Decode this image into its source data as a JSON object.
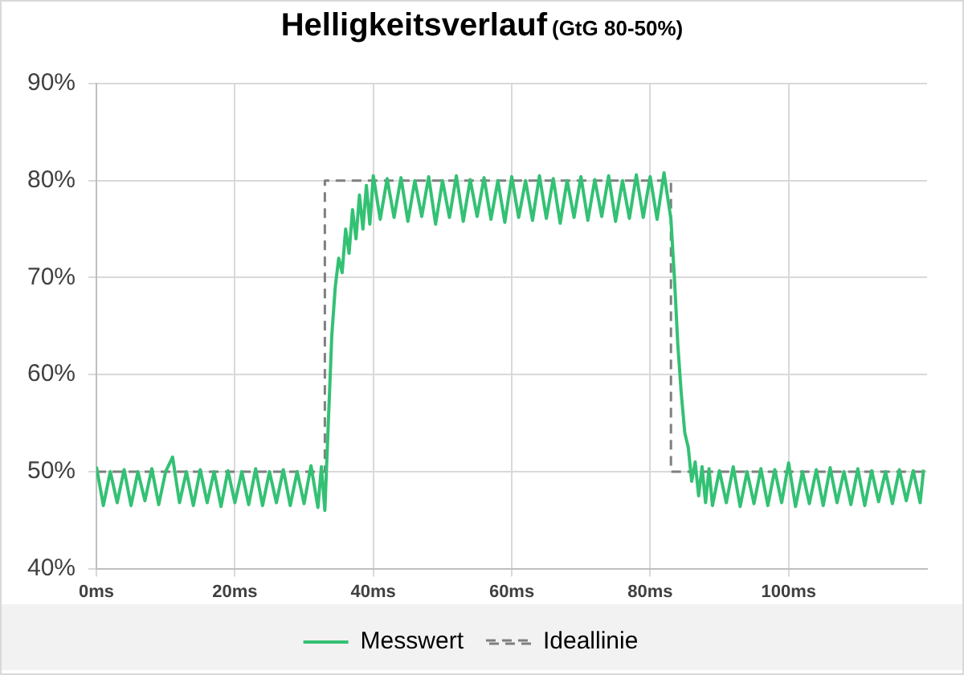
{
  "chart_data": {
    "type": "line",
    "title": "Helligkeitsverlauf",
    "subtitle": "(GtG 80-50%)",
    "xlim": [
      0,
      120
    ],
    "xticks": [
      {
        "value": 0,
        "label": "0ms"
      },
      {
        "value": 20,
        "label": "20ms"
      },
      {
        "value": 40,
        "label": "40ms"
      },
      {
        "value": 60,
        "label": "60ms"
      },
      {
        "value": 80,
        "label": "80ms"
      },
      {
        "value": 100,
        "label": "100ms"
      }
    ],
    "ylim": [
      40,
      90
    ],
    "yticks": [
      {
        "value": 40,
        "label": "40%"
      },
      {
        "value": 50,
        "label": "50%"
      },
      {
        "value": 60,
        "label": "60%"
      },
      {
        "value": 70,
        "label": "70%"
      },
      {
        "value": 80,
        "label": "80%"
      },
      {
        "value": 90,
        "label": "90%"
      }
    ],
    "grid": true,
    "legend": "bottom",
    "marker": "none",
    "series": [
      {
        "name": "Messwert",
        "color": "#33c174",
        "line_style": "solid",
        "x": [
          0,
          1,
          2,
          3,
          4,
          5,
          6,
          7,
          8,
          9,
          10,
          11,
          12,
          13,
          14,
          15,
          16,
          17,
          18,
          19,
          20,
          21,
          22,
          23,
          24,
          25,
          26,
          27,
          28,
          29,
          30,
          31,
          32,
          32.5,
          33,
          33.5,
          34,
          34.5,
          35,
          35.5,
          36,
          36.5,
          37,
          37.5,
          38,
          38.5,
          39,
          39.5,
          40,
          41,
          42,
          43,
          44,
          45,
          46,
          47,
          48,
          49,
          50,
          51,
          52,
          53,
          54,
          55,
          56,
          57,
          58,
          59,
          60,
          61,
          62,
          63,
          64,
          65,
          66,
          67,
          68,
          69,
          70,
          71,
          72,
          73,
          74,
          75,
          76,
          77,
          78,
          79,
          80,
          81,
          82,
          83,
          83.5,
          84,
          84.5,
          85,
          85.5,
          86,
          86.5,
          87,
          87.5,
          88,
          88.5,
          89,
          90,
          91,
          92,
          93,
          94,
          95,
          96,
          97,
          98,
          99,
          100,
          101,
          102,
          103,
          104,
          105,
          106,
          107,
          108,
          109,
          110,
          111,
          112,
          113,
          114,
          115,
          116,
          117,
          118,
          119,
          119.5
        ],
        "values": [
          50.5,
          46.5,
          50,
          46.8,
          50.2,
          46.5,
          50,
          47,
          50.3,
          46.6,
          50,
          51.5,
          46.8,
          50,
          46.5,
          50.2,
          46.8,
          50,
          46.4,
          50.1,
          46.8,
          50,
          46.6,
          50.3,
          46.5,
          50,
          46.8,
          50.2,
          46.5,
          50,
          46.7,
          50.6,
          46.3,
          50.5,
          46,
          55,
          64,
          69,
          72,
          70.5,
          75,
          72.5,
          77,
          74,
          78.5,
          75,
          79.5,
          75.5,
          80.5,
          76,
          80.2,
          76.2,
          80.3,
          75.8,
          80,
          76.3,
          80.4,
          75.5,
          80,
          76.2,
          80.5,
          75.8,
          80.1,
          76.3,
          80.3,
          76,
          80,
          75.7,
          80.4,
          76.2,
          80,
          75.9,
          80.5,
          76.1,
          80.2,
          75.6,
          80,
          76.2,
          80.4,
          75.9,
          80.1,
          76.3,
          80.5,
          75.8,
          80,
          76.1,
          80.6,
          76.2,
          80.4,
          76,
          80.8,
          76,
          70,
          63,
          58,
          54,
          52.5,
          49,
          51,
          47.5,
          50.5,
          46.8,
          50.3,
          46.5,
          50.1,
          46.8,
          50.5,
          46.4,
          50,
          46.7,
          50.3,
          46.5,
          50.2,
          46.8,
          50.9,
          46.4,
          50,
          46.7,
          50.2,
          46.5,
          50.4,
          46.8,
          50,
          46.6,
          50.3,
          46.5,
          50.1,
          46.9,
          50,
          46.7,
          50.2,
          47,
          50.1,
          46.8,
          50.2
        ]
      },
      {
        "name": "Ideallinie",
        "color": "#7f7f7f",
        "line_style": "dashed",
        "x": [
          0,
          33,
          33,
          83,
          83,
          120
        ],
        "values": [
          50,
          50,
          80,
          80,
          50,
          50
        ]
      }
    ]
  }
}
